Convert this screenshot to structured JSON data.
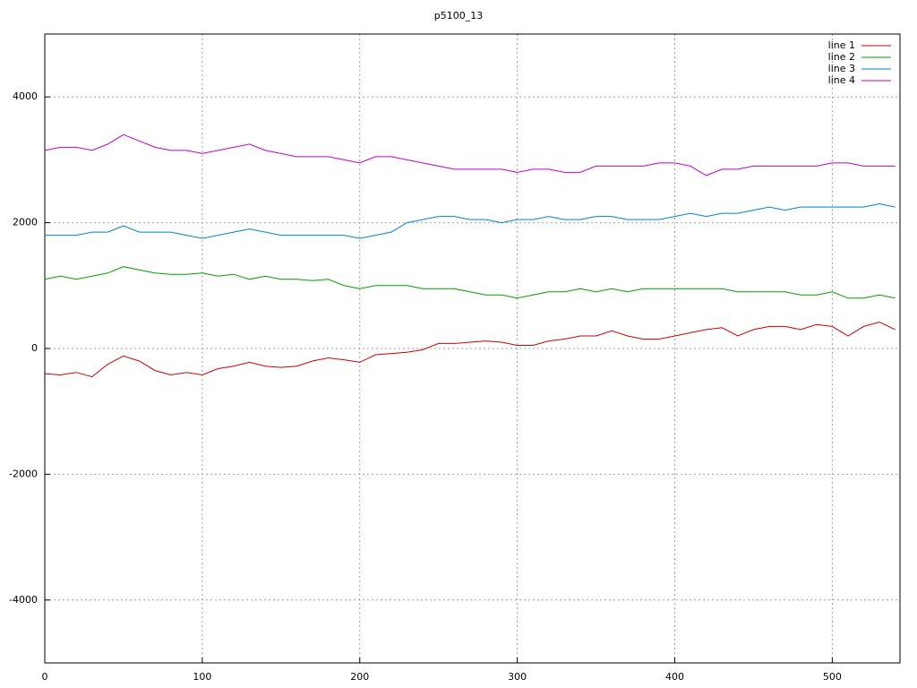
{
  "chart_data": {
    "type": "line",
    "title": "p5100_13",
    "x": [
      0,
      10,
      20,
      30,
      40,
      50,
      60,
      70,
      80,
      90,
      100,
      110,
      120,
      130,
      140,
      150,
      160,
      170,
      180,
      190,
      200,
      210,
      220,
      230,
      240,
      250,
      260,
      270,
      280,
      290,
      300,
      310,
      320,
      330,
      340,
      350,
      360,
      370,
      380,
      390,
      400,
      410,
      420,
      430,
      440,
      450,
      460,
      470,
      480,
      490,
      500,
      510,
      520,
      530,
      540
    ],
    "series": [
      {
        "name": "line 1",
        "color": "#d00000",
        "values": [
          -400,
          -420,
          -380,
          -450,
          -250,
          -120,
          -200,
          -350,
          -420,
          -380,
          -420,
          -320,
          -280,
          -220,
          -280,
          -300,
          -280,
          -200,
          -150,
          -180,
          -220,
          -100,
          -80,
          -60,
          -20,
          80,
          80,
          100,
          120,
          100,
          50,
          50,
          120,
          150,
          200,
          200,
          280,
          200,
          150,
          150,
          200,
          250,
          300,
          330,
          200,
          300,
          350,
          350,
          300,
          380,
          350,
          200,
          350,
          420,
          300
        ]
      },
      {
        "name": "line 2",
        "color": "#00a000",
        "values": [
          1100,
          1150,
          1100,
          1150,
          1200,
          1300,
          1250,
          1200,
          1180,
          1180,
          1200,
          1150,
          1180,
          1100,
          1150,
          1100,
          1100,
          1080,
          1100,
          1000,
          950,
          1000,
          1000,
          1000,
          950,
          950,
          950,
          900,
          850,
          850,
          800,
          850,
          900,
          900,
          950,
          900,
          950,
          900,
          950,
          950,
          950,
          950,
          950,
          950,
          900,
          900,
          900,
          900,
          850,
          850,
          900,
          800,
          800,
          850,
          800
        ]
      },
      {
        "name": "line 3",
        "color": "#0080d0",
        "values": [
          1800,
          1800,
          1800,
          1850,
          1850,
          1950,
          1850,
          1850,
          1850,
          1800,
          1750,
          1800,
          1850,
          1900,
          1850,
          1800,
          1800,
          1800,
          1800,
          1800,
          1750,
          1800,
          1850,
          2000,
          2050,
          2100,
          2100,
          2050,
          2050,
          2000,
          2050,
          2050,
          2100,
          2050,
          2050,
          2100,
          2100,
          2050,
          2050,
          2050,
          2100,
          2150,
          2100,
          2150,
          2150,
          2200,
          2250,
          2200,
          2250,
          2250,
          2250,
          2250,
          2250,
          2300,
          2250
        ]
      },
      {
        "name": "line 4",
        "color": "#c000d0",
        "values": [
          3150,
          3200,
          3200,
          3150,
          3250,
          3400,
          3300,
          3200,
          3150,
          3150,
          3100,
          3150,
          3200,
          3250,
          3150,
          3100,
          3050,
          3050,
          3050,
          3000,
          2950,
          3050,
          3050,
          3000,
          2950,
          2900,
          2850,
          2850,
          2850,
          2850,
          2800,
          2850,
          2850,
          2800,
          2800,
          2900,
          2900,
          2900,
          2900,
          2950,
          2950,
          2900,
          2750,
          2850,
          2850,
          2900,
          2900,
          2900,
          2900,
          2900,
          2950,
          2950,
          2900,
          2900,
          2900
        ]
      }
    ],
    "xlim": [
      0,
      543
    ],
    "xticks": [
      0,
      100,
      200,
      300,
      400,
      500
    ],
    "ylim": [
      -5000,
      5000
    ],
    "yticks": [
      -4000,
      -2000,
      0,
      2000,
      4000
    ],
    "grid": true,
    "legend": "top-right"
  }
}
